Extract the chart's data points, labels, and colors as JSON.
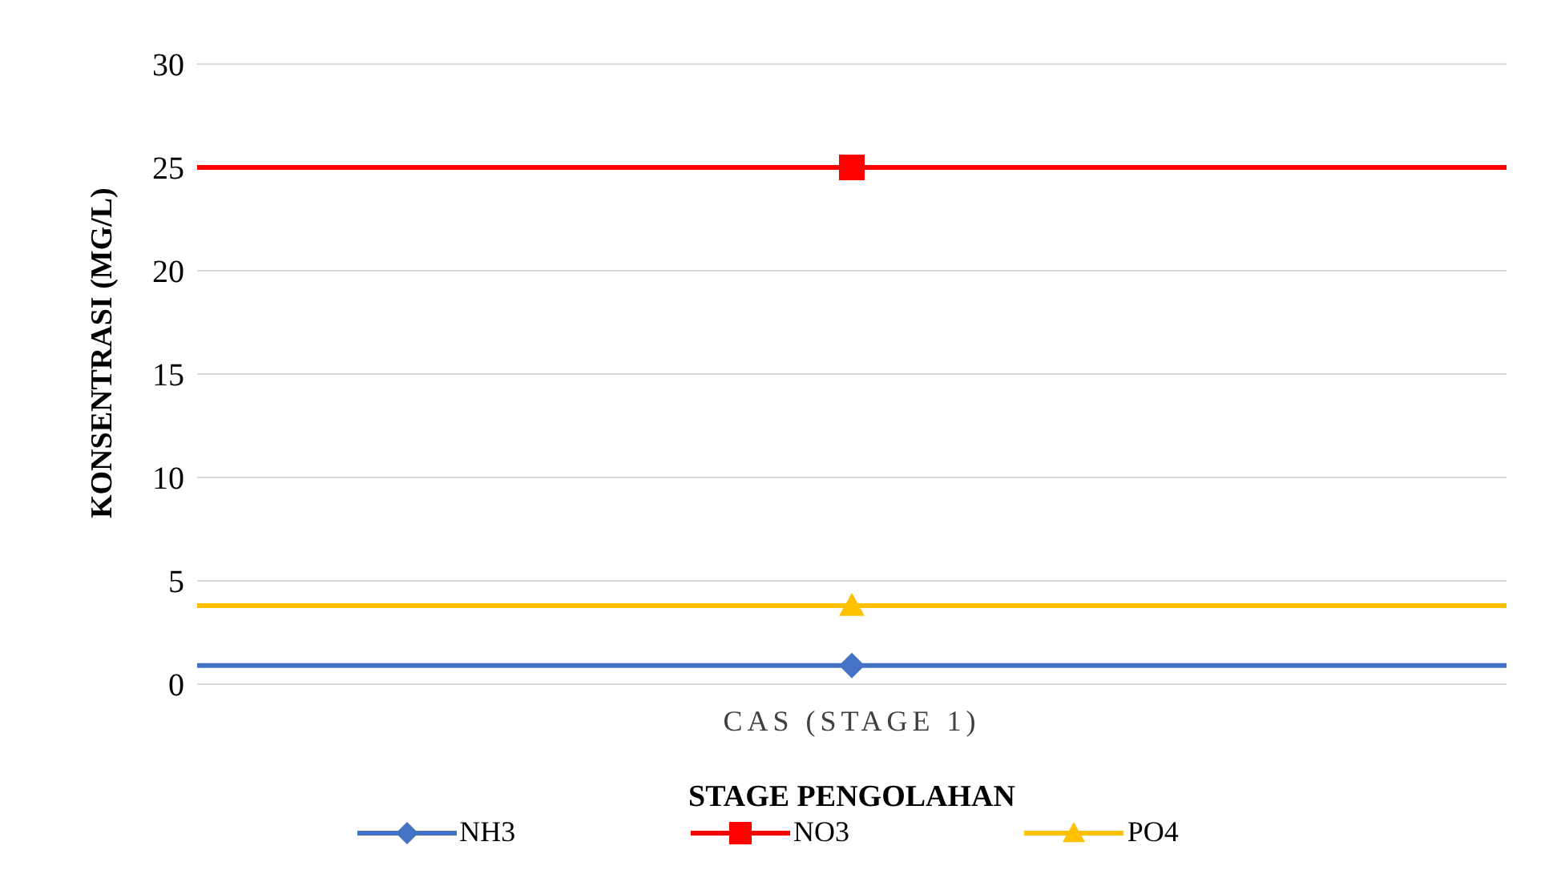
{
  "chart_data": {
    "type": "line",
    "xlabel": "STAGE PENGOLAHAN",
    "ylabel": "KONSENTRASI (MG/L)",
    "categories": [
      "CAS (STAGE 1)"
    ],
    "series": [
      {
        "name": "NH3",
        "color": "#4472c4",
        "values": [
          0.9
        ],
        "marker": "diamond"
      },
      {
        "name": "NO3",
        "color": "#ff0000",
        "values": [
          25
        ],
        "marker": "square"
      },
      {
        "name": "PO4",
        "color": "#ffc000",
        "values": [
          3.8
        ],
        "marker": "triangle"
      }
    ],
    "ref_lines": [
      {
        "axis": "y",
        "value": 0.9,
        "color": "#4472c4"
      },
      {
        "axis": "y",
        "value": 25,
        "color": "#ff0000"
      },
      {
        "axis": "y",
        "value": 3.8,
        "color": "#ffc000"
      }
    ],
    "ylim": [
      0,
      30
    ],
    "yticks": [
      0,
      5,
      10,
      15,
      20,
      25,
      30
    ],
    "grid": "y",
    "legend": "bottom"
  }
}
